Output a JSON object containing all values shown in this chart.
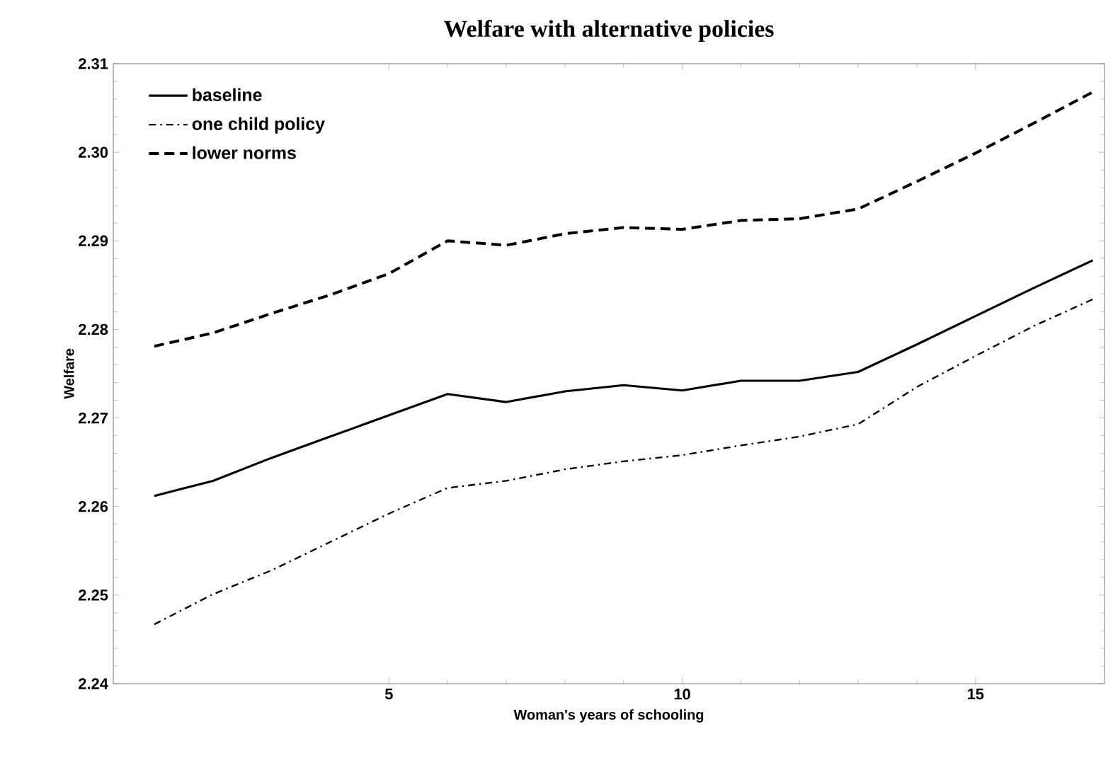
{
  "chart_data": {
    "type": "line",
    "title": "Welfare with alternative policies",
    "xlabel": "Woman's years of schooling",
    "ylabel": "Welfare",
    "x": [
      1,
      2,
      3,
      4,
      5,
      6,
      7,
      8,
      9,
      10,
      11,
      12,
      13,
      14,
      15,
      16,
      17
    ],
    "series": [
      {
        "name": "baseline",
        "color": "#000000",
        "line_style": "solid",
        "values": [
          2.2612,
          2.2629,
          2.2655,
          2.2679,
          2.2703,
          2.2727,
          2.2718,
          2.273,
          2.2737,
          2.2731,
          2.2742,
          2.2742,
          2.2752,
          2.2783,
          2.2815,
          2.2847,
          2.2878
        ]
      },
      {
        "name": "one child policy",
        "color": "#000000",
        "line_style": "dashdot",
        "values": [
          2.2467,
          2.2501,
          2.2528,
          2.256,
          2.2592,
          2.2621,
          2.2629,
          2.2642,
          2.2651,
          2.2658,
          2.2669,
          2.2679,
          2.2693,
          2.2735,
          2.277,
          2.2804,
          2.2834
        ]
      },
      {
        "name": "lower norms",
        "color": "#000000",
        "line_style": "dashed",
        "values": [
          2.2781,
          2.2796,
          2.2818,
          2.2839,
          2.2863,
          2.29,
          2.2895,
          2.2908,
          2.2915,
          2.2913,
          2.2923,
          2.2925,
          2.2936,
          2.2967,
          2.2999,
          2.3033,
          2.3068
        ]
      }
    ],
    "xlim": [
      0.3,
      17.2
    ],
    "ylim": [
      2.24,
      2.31
    ],
    "xticks": [
      5,
      10,
      15
    ],
    "yticks": [
      2.24,
      2.25,
      2.26,
      2.27,
      2.28,
      2.29,
      {
        "value": 2.3,
        "label": "2.30"
      },
      2.31
    ],
    "grid": false,
    "legend": "top left",
    "marker": "none"
  }
}
